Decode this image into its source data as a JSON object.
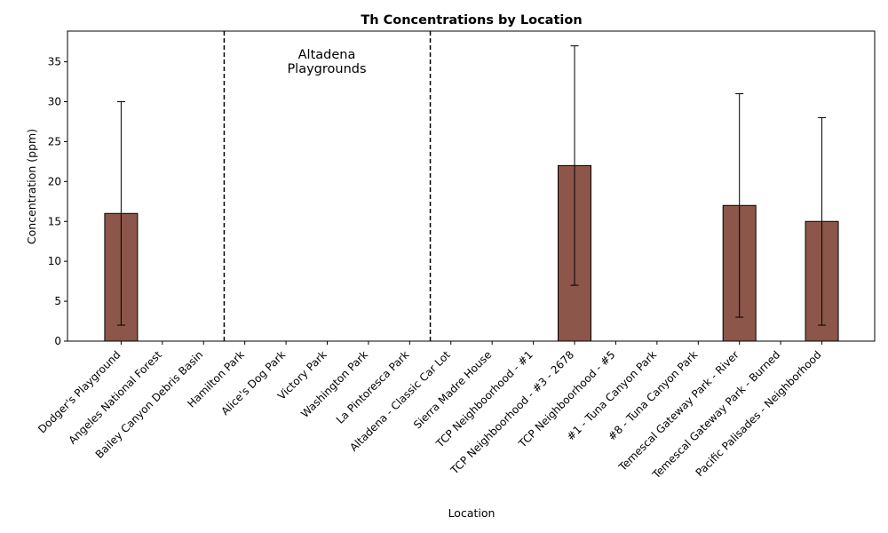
{
  "chart_data": {
    "type": "bar",
    "title": "Th Concentrations by Location",
    "xlabel": "Location",
    "ylabel": "Concentration (ppm)",
    "ylim": [
      0,
      38.85
    ],
    "yticks": [
      0,
      5,
      10,
      15,
      20,
      25,
      30,
      35
    ],
    "categories": [
      "Dodger's Playground",
      "Angeles National Forest",
      "Bailey Canyon Debris Basin",
      "Hamilton Park",
      "Alice's Dog Park",
      "Victory Park",
      "Washington Park",
      "La Pintoresca Park",
      "Altadena - Classic Car Lot",
      "Sierra Madre House",
      "TCP Neighboorhood - #1",
      "TCP Neighboorhood - #3 - 2678",
      "TCP Neighboorhood - #5",
      "#1 - Tuna Canyon Park",
      "#8 - Tuna Canyon Park",
      "Temescal Gateway Park - River",
      "Temescal Gateway Park - Burned",
      "Pacific Palisades - Neighborhood"
    ],
    "values": [
      16,
      null,
      null,
      null,
      null,
      null,
      null,
      null,
      null,
      null,
      null,
      22,
      null,
      null,
      null,
      17,
      null,
      15
    ],
    "error_low": [
      2,
      null,
      null,
      null,
      null,
      null,
      null,
      null,
      null,
      null,
      null,
      7,
      null,
      null,
      null,
      3,
      null,
      2
    ],
    "error_high": [
      30,
      null,
      null,
      null,
      null,
      null,
      null,
      null,
      null,
      null,
      null,
      37,
      null,
      null,
      null,
      31,
      null,
      28
    ],
    "bar_color": "#8c564b",
    "edge_color": "#000000",
    "grid": false,
    "group_region": {
      "label_line1": "Altadena",
      "label_line2": "Playgrounds",
      "start_after_index": 2,
      "end_after_index": 7,
      "line_style": "dashed"
    }
  }
}
